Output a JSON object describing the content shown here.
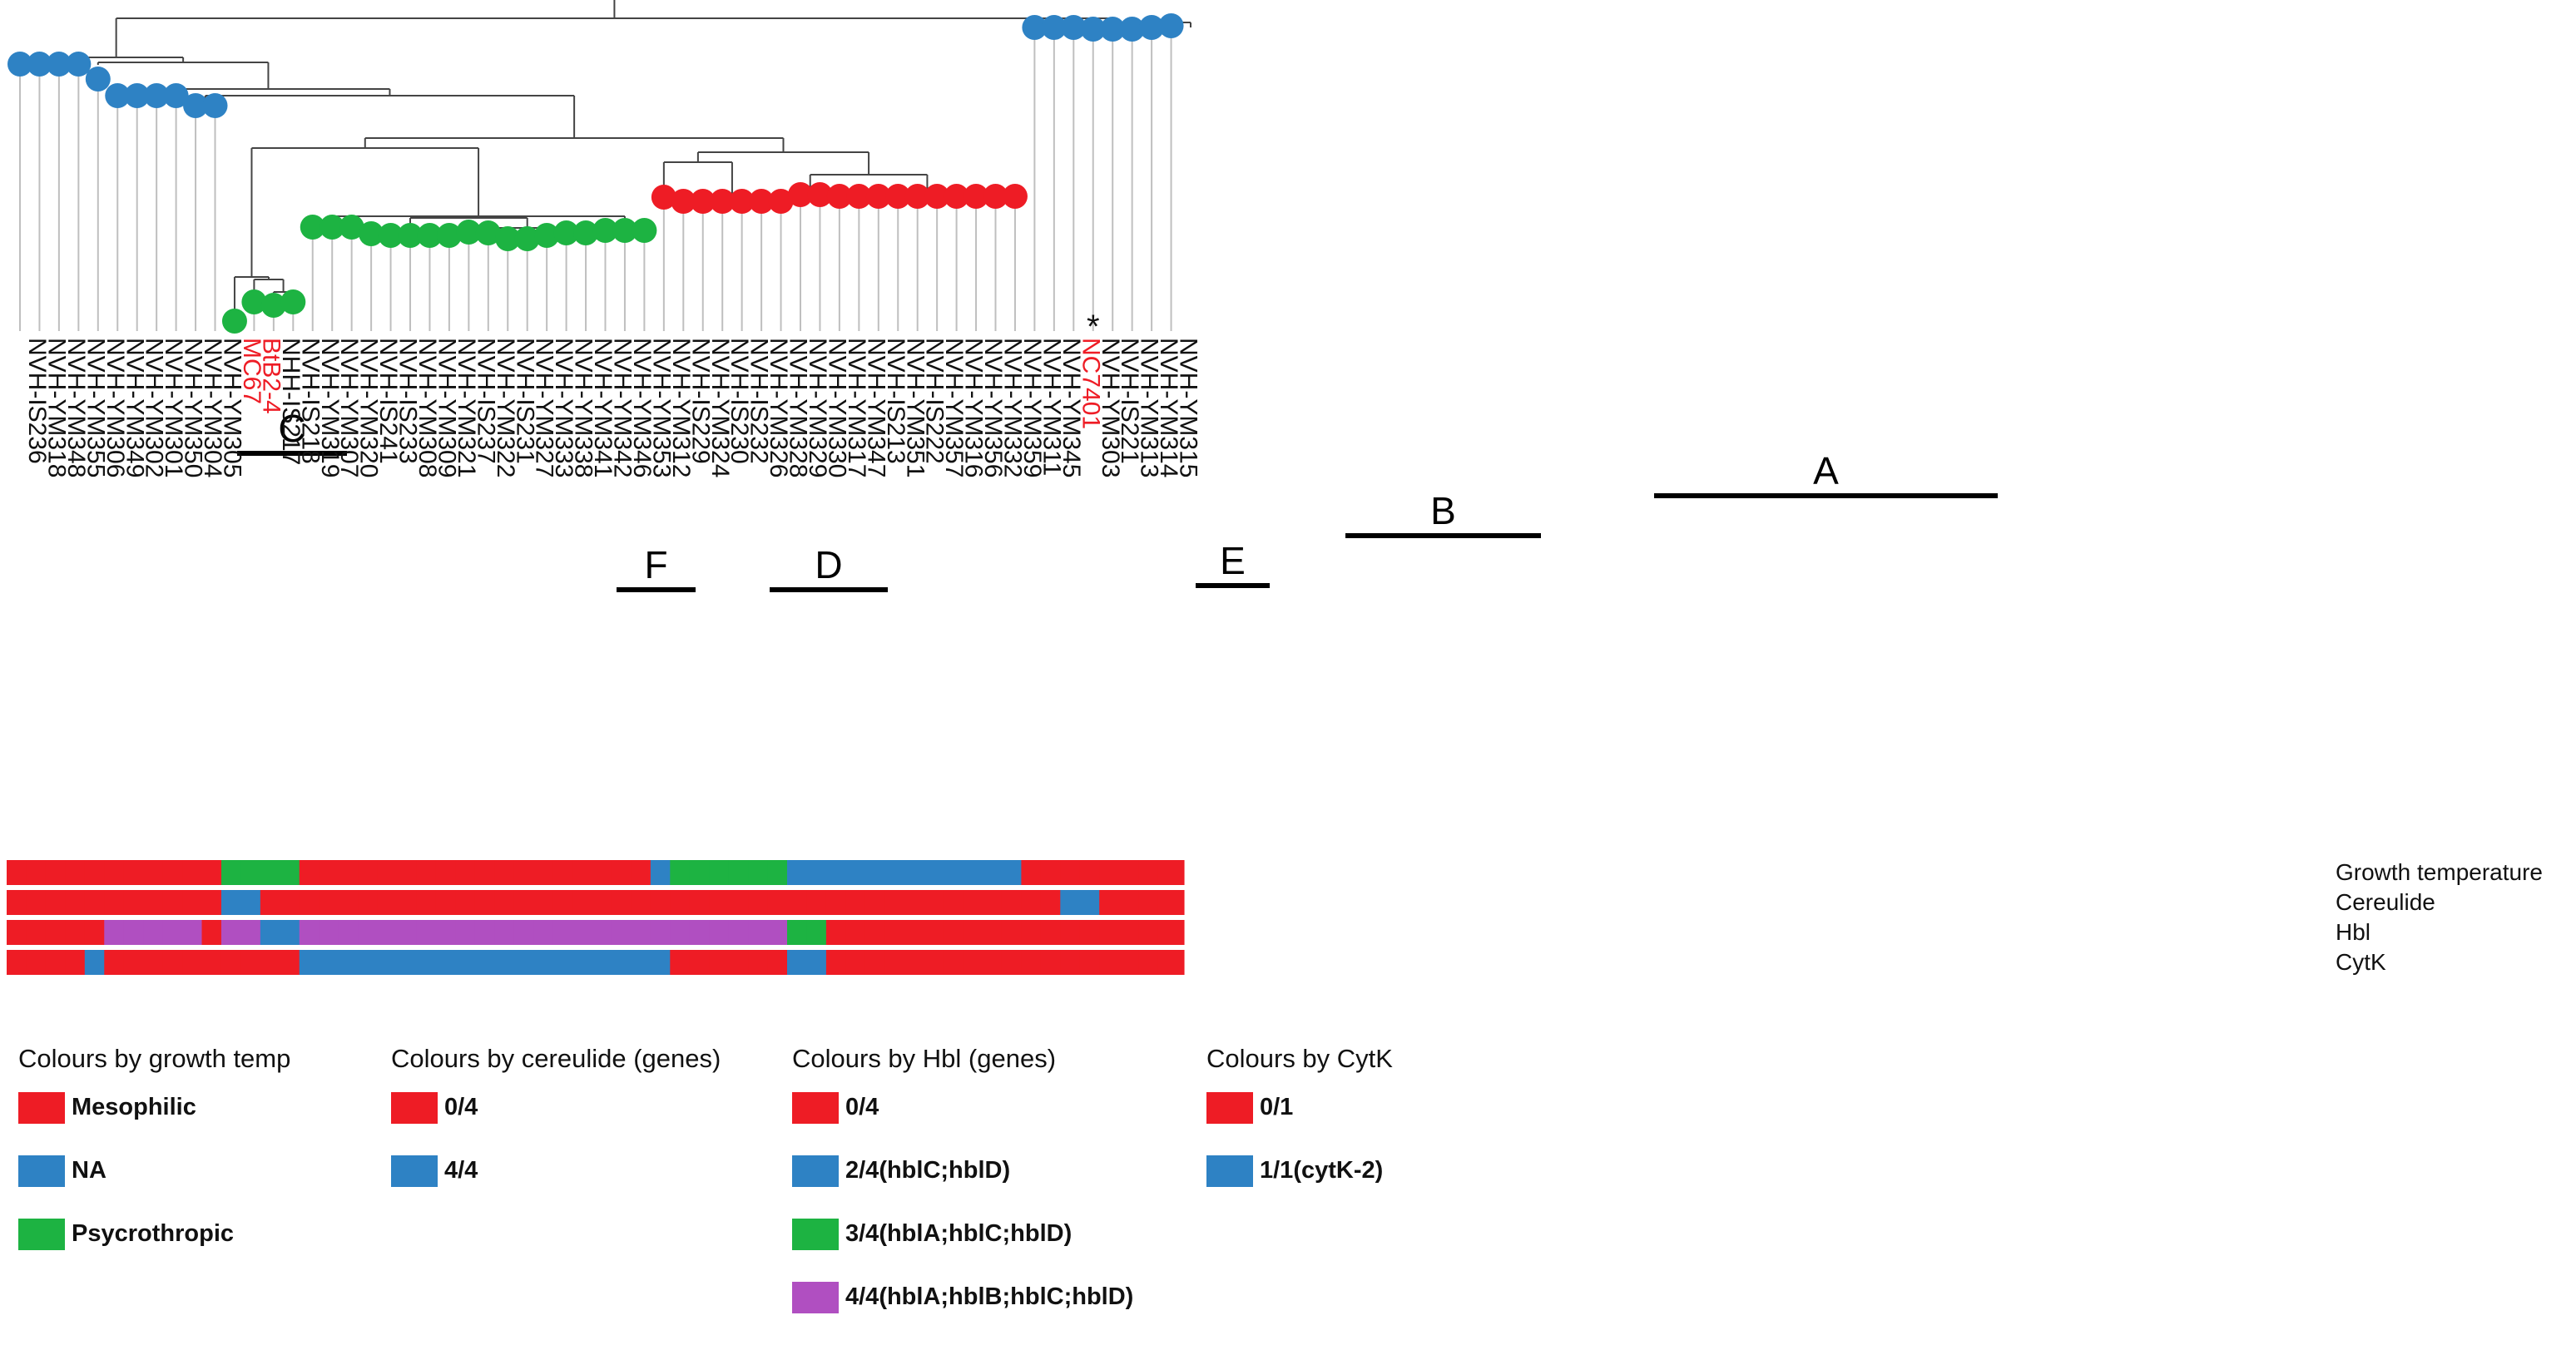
{
  "colors": {
    "mesophilic": "#ee1c25",
    "na": "#2e82c4",
    "psychro": "#1db342",
    "purple": "#b04fc1",
    "branch": "#444444",
    "leafline": "#bfbfbf"
  },
  "taxa": [
    {
      "label": "NVH-IS236",
      "red": false,
      "node": "blue"
    },
    {
      "label": "NVH-YM318",
      "red": false,
      "node": "blue"
    },
    {
      "label": "NVH-YM348",
      "red": false,
      "node": "blue"
    },
    {
      "label": "NVH-YM355",
      "red": false,
      "node": "blue"
    },
    {
      "label": "NVH-YM306",
      "red": false,
      "node": "blue"
    },
    {
      "label": "NVH-YM349",
      "red": false,
      "node": "blue"
    },
    {
      "label": "NVH-YM302",
      "red": false,
      "node": "blue"
    },
    {
      "label": "NVH-YM301",
      "red": false,
      "node": "blue"
    },
    {
      "label": "NVH-YM350",
      "red": false,
      "node": "blue"
    },
    {
      "label": "NVH-YM304",
      "red": false,
      "node": "blue"
    },
    {
      "label": "NVH-YM305",
      "red": false,
      "node": "blue"
    },
    {
      "label": "MC67",
      "red": true,
      "node": "green"
    },
    {
      "label": "BtB2-4",
      "red": true,
      "node": "green"
    },
    {
      "label": "NHH-IS217",
      "red": false,
      "node": "green"
    },
    {
      "label": "NVH-IS218",
      "red": false,
      "node": "green"
    },
    {
      "label": "NVH-YM319",
      "red": false,
      "node": "green"
    },
    {
      "label": "NVH-YM307",
      "red": false,
      "node": "green"
    },
    {
      "label": "NVH-YM320",
      "red": false,
      "node": "green"
    },
    {
      "label": "NVH-IS241",
      "red": false,
      "node": "green"
    },
    {
      "label": "NVH-IS233",
      "red": false,
      "node": "green"
    },
    {
      "label": "NVH-YM308",
      "red": false,
      "node": "green"
    },
    {
      "label": "NVH-YM309",
      "red": false,
      "node": "green"
    },
    {
      "label": "NVH-YM321",
      "red": false,
      "node": "green"
    },
    {
      "label": "NVH-IS237",
      "red": false,
      "node": "green"
    },
    {
      "label": "NVH-YM322",
      "red": false,
      "node": "green"
    },
    {
      "label": "NVH-IS231",
      "red": false,
      "node": "green"
    },
    {
      "label": "NVH-YM327",
      "red": false,
      "node": "green"
    },
    {
      "label": "NVH-YM333",
      "red": false,
      "node": "green"
    },
    {
      "label": "NVH-YM338",
      "red": false,
      "node": "green"
    },
    {
      "label": "NVH-YM341",
      "red": false,
      "node": "green"
    },
    {
      "label": "NVH-YM342",
      "red": false,
      "node": "green"
    },
    {
      "label": "NVH-YM346",
      "red": false,
      "node": "green"
    },
    {
      "label": "NVH-YM353",
      "red": false,
      "node": "green"
    },
    {
      "label": "NVH-YM312",
      "red": false,
      "node": "red"
    },
    {
      "label": "NVH-IS229",
      "red": false,
      "node": "red"
    },
    {
      "label": "NVH-YM324",
      "red": false,
      "node": "red"
    },
    {
      "label": "NVH-IS230",
      "red": false,
      "node": "red"
    },
    {
      "label": "NVH-IS232",
      "red": false,
      "node": "red"
    },
    {
      "label": "NVH-YM326",
      "red": false,
      "node": "red"
    },
    {
      "label": "NVH-YM328",
      "red": false,
      "node": "red"
    },
    {
      "label": "NVH-YM329",
      "red": false,
      "node": "red"
    },
    {
      "label": "NVH-YM330",
      "red": false,
      "node": "red"
    },
    {
      "label": "NVH-YM317",
      "red": false,
      "node": "red"
    },
    {
      "label": "NVH-YM347",
      "red": false,
      "node": "red"
    },
    {
      "label": "NVH-IS213",
      "red": false,
      "node": "red"
    },
    {
      "label": "NVH-YM351",
      "red": false,
      "node": "red"
    },
    {
      "label": "NVH-IS222",
      "red": false,
      "node": "red"
    },
    {
      "label": "NVH-YM357",
      "red": false,
      "node": "red"
    },
    {
      "label": "NVH-YM316",
      "red": false,
      "node": "red"
    },
    {
      "label": "NVH-YM356",
      "red": false,
      "node": "red"
    },
    {
      "label": "NVH-YM332",
      "red": false,
      "node": "red"
    },
    {
      "label": "NVH-YM359",
      "red": false,
      "node": "red"
    },
    {
      "label": "NVH-YM311",
      "red": false,
      "node": "blue"
    },
    {
      "label": "NVH-YM345",
      "red": false,
      "node": "blue"
    },
    {
      "label": "NC7401",
      "red": true,
      "node": "blue"
    },
    {
      "label": "NVH-YM303",
      "red": false,
      "node": "blue",
      "star": "*"
    },
    {
      "label": "NVH-IS221",
      "red": false,
      "node": "blue"
    },
    {
      "label": "NVH-YM313",
      "red": false,
      "node": "blue"
    },
    {
      "label": "NVH-YM314",
      "red": false,
      "node": "blue"
    },
    {
      "label": "NVH-YM315",
      "red": false,
      "node": "blue"
    }
  ],
  "heatmap": {
    "row_labels": [
      "Growth temperature",
      "Cereulide",
      "Hbl",
      "CytK"
    ],
    "rows": [
      "RRRRRRRRRRRGGGGRRRRRRRRRRRRRRRRRRBGGGGGGBBBBBBBBBBBBRRRRRRRR",
      "RRRRRRRRRRRBBRRRRRRRRRRRRRRRRRRRRRRRRRRRRRRRRRRRRRRRRRBBRRRR",
      "RRRRRPPPPPRPPBBPPPPPPPPPPPPPPPPPPPPPPPPPGGRRRRRRRRRRRRRRRRRR",
      "RRRRBRRRRRRRRRRBBBBBBBBBBBBBBBBBBBRRRRRRBBRRRRRRRRRRRRRRRRRR"
    ]
  },
  "clades": [
    {
      "label": "C"
    },
    {
      "label": "F"
    },
    {
      "label": "D"
    },
    {
      "label": "E"
    },
    {
      "label": "B"
    },
    {
      "label": "A"
    }
  ],
  "legend": [
    {
      "title": "Colours by growth temp",
      "items": [
        {
          "label": "Mesophilic",
          "color": "#ee1c25"
        },
        {
          "label": "NA",
          "color": "#2e82c4"
        },
        {
          "label": "Psycrothropic",
          "color": "#1db342"
        }
      ]
    },
    {
      "title": "Colours by cereulide (genes)",
      "items": [
        {
          "label": "0/4",
          "color": "#ee1c25"
        },
        {
          "label": "4/4",
          "color": "#2e82c4"
        }
      ]
    },
    {
      "title": "Colours by Hbl (genes)",
      "items": [
        {
          "label": "0/4",
          "color": "#ee1c25"
        },
        {
          "label": "2/4(hblC;hblD)",
          "color": "#2e82c4"
        },
        {
          "label": "3/4(hblA;hblC;hblD)",
          "color": "#1db342"
        },
        {
          "label": "4/4(hblA;hblB;hblC;hblD)",
          "color": "#b04fc1"
        }
      ]
    },
    {
      "title": "Colours by CytK",
      "items": [
        {
          "label": "0/1",
          "color": "#ee1c25"
        },
        {
          "label": "1/1(cytK-2)",
          "color": "#2e82c4"
        }
      ]
    }
  ]
}
